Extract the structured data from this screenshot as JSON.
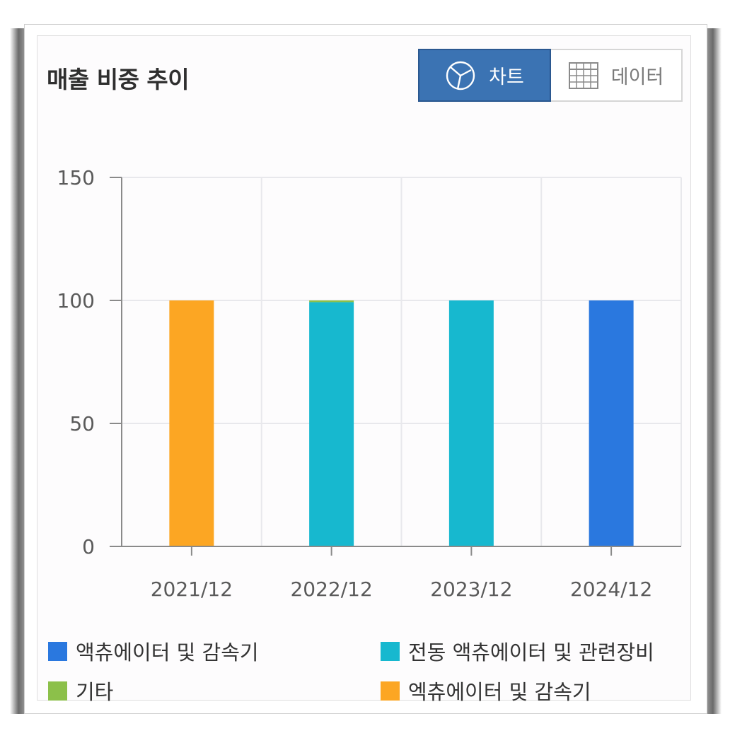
{
  "card": {
    "title": "매출 비중 추이"
  },
  "toolbar": {
    "chart_label": "차트",
    "data_label": "데이터",
    "chart_icon": "pie-chart-icon",
    "data_icon": "table-grid-icon"
  },
  "colors": {
    "accent": "#3b73b3",
    "s1": "#2a78df",
    "s2": "#17b8cf",
    "s3": "#8cc04a",
    "s4": "#fca623"
  },
  "chart_data": {
    "type": "bar",
    "stacked": true,
    "categories": [
      "2021/12",
      "2022/12",
      "2023/12",
      "2024/12"
    ],
    "series": [
      {
        "name": "액츄에이터 및 감속기",
        "values": [
          0,
          0,
          0,
          100
        ]
      },
      {
        "name": "전동 액츄에이터 및 관련장비",
        "values": [
          0,
          99.3,
          100,
          0
        ]
      },
      {
        "name": "기타",
        "values": [
          0,
          0.7,
          0,
          0
        ]
      },
      {
        "name": "엑츄에이터 및 감속기",
        "values": [
          100,
          0,
          0,
          0
        ]
      }
    ],
    "yticks": [
      0,
      50,
      100,
      150
    ],
    "ylim": [
      0,
      150
    ],
    "grid": true,
    "legend_position": "bottom"
  }
}
